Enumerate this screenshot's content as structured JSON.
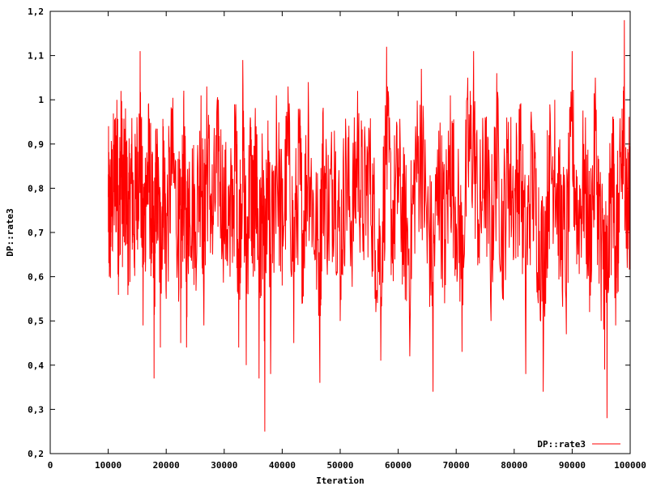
{
  "chart_data": {
    "type": "line",
    "xlabel": "Iteration",
    "ylabel": "DP::rate3",
    "xlim": [
      0,
      100000
    ],
    "ylim": [
      0.2,
      1.2
    ],
    "xticks": [
      0,
      10000,
      20000,
      30000,
      40000,
      50000,
      60000,
      70000,
      80000,
      90000,
      100000
    ],
    "yticks": [
      0.2,
      0.3,
      0.4,
      0.5,
      0.6,
      0.7,
      0.8,
      0.9,
      1.0,
      1.1,
      1.2
    ],
    "xtick_labels": [
      "0",
      "10000",
      "20000",
      "30000",
      "40000",
      "50000",
      "60000",
      "70000",
      "80000",
      "90000",
      "100000"
    ],
    "ytick_labels": [
      "0,2",
      "0,3",
      "0,4",
      "0,5",
      "0,6",
      "0,7",
      "0,8",
      "0,9",
      "1",
      "1,1",
      "1,2"
    ],
    "legend_position": "bottom-right",
    "grid": false,
    "series": [
      {
        "name": "DP::rate3",
        "color": "#ff0000",
        "x_start": 10000,
        "x_end": 100000,
        "sampled_points": [
          [
            10000,
            0.78
          ],
          [
            10200,
            0.6
          ],
          [
            10500,
            0.7
          ],
          [
            11000,
            0.87
          ],
          [
            11500,
            1.0
          ],
          [
            11800,
            0.6
          ],
          [
            12200,
            1.02
          ],
          [
            12600,
            0.72
          ],
          [
            13000,
            0.92
          ],
          [
            13500,
            0.58
          ],
          [
            14000,
            0.9
          ],
          [
            14500,
            0.62
          ],
          [
            15000,
            0.92
          ],
          [
            15500,
            1.11
          ],
          [
            16000,
            0.49
          ],
          [
            16500,
            0.83
          ],
          [
            17000,
            0.95
          ],
          [
            17500,
            0.67
          ],
          [
            17900,
            0.37
          ],
          [
            18300,
            0.9
          ],
          [
            19000,
            0.44
          ],
          [
            19500,
            0.94
          ],
          [
            20000,
            0.55
          ],
          [
            21000,
            0.98
          ],
          [
            22000,
            0.68
          ],
          [
            22500,
            0.45
          ],
          [
            23000,
            1.0
          ],
          [
            23500,
            0.44
          ],
          [
            24000,
            0.86
          ],
          [
            25000,
            0.62
          ],
          [
            26000,
            1.01
          ],
          [
            26500,
            0.49
          ],
          [
            27000,
            1.03
          ],
          [
            28000,
            0.65
          ],
          [
            29000,
            1.0
          ],
          [
            30000,
            0.69
          ],
          [
            31000,
            0.6
          ],
          [
            32000,
            0.99
          ],
          [
            32500,
            0.44
          ],
          [
            33200,
            1.09
          ],
          [
            33800,
            0.4
          ],
          [
            34500,
            0.96
          ],
          [
            35000,
            0.6
          ],
          [
            35500,
            0.94
          ],
          [
            36000,
            0.37
          ],
          [
            36500,
            0.72
          ],
          [
            37000,
            0.25
          ],
          [
            37500,
            0.84
          ],
          [
            38000,
            0.38
          ],
          [
            39000,
            1.01
          ],
          [
            40000,
            0.58
          ],
          [
            41000,
            1.03
          ],
          [
            42000,
            0.45
          ],
          [
            43000,
            0.98
          ],
          [
            43500,
            0.54
          ],
          [
            44500,
            1.04
          ],
          [
            45500,
            0.65
          ],
          [
            46500,
            0.36
          ],
          [
            47000,
            0.97
          ],
          [
            48000,
            0.68
          ],
          [
            49000,
            0.93
          ],
          [
            50000,
            0.5
          ],
          [
            51000,
            0.91
          ],
          [
            52000,
            0.64
          ],
          [
            53000,
            1.02
          ],
          [
            54000,
            0.72
          ],
          [
            55000,
            0.93
          ],
          [
            56000,
            0.55
          ],
          [
            57000,
            0.41
          ],
          [
            58000,
            1.12
          ],
          [
            59000,
            0.63
          ],
          [
            60000,
            0.89
          ],
          [
            61000,
            0.6
          ],
          [
            62000,
            0.42
          ],
          [
            63000,
            0.94
          ],
          [
            64000,
            1.07
          ],
          [
            65000,
            0.63
          ],
          [
            66000,
            0.34
          ],
          [
            67000,
            0.93
          ],
          [
            68000,
            0.54
          ],
          [
            69000,
            1.01
          ],
          [
            70000,
            0.72
          ],
          [
            71000,
            0.43
          ],
          [
            72000,
            1.05
          ],
          [
            73000,
            1.11
          ],
          [
            74000,
            0.63
          ],
          [
            75000,
            0.96
          ],
          [
            76000,
            0.5
          ],
          [
            77000,
            1.06
          ],
          [
            78000,
            0.55
          ],
          [
            79000,
            0.95
          ],
          [
            80000,
            0.75
          ],
          [
            81000,
            0.99
          ],
          [
            82000,
            0.38
          ],
          [
            83000,
            0.94
          ],
          [
            84000,
            0.61
          ],
          [
            85000,
            0.34
          ],
          [
            86000,
            0.92
          ],
          [
            87000,
            1.0
          ],
          [
            88000,
            0.6
          ],
          [
            89000,
            0.47
          ],
          [
            90000,
            1.11
          ],
          [
            91000,
            0.65
          ],
          [
            92000,
            0.9
          ],
          [
            93000,
            0.52
          ],
          [
            94000,
            1.05
          ],
          [
            95000,
            0.5
          ],
          [
            95600,
            0.39
          ],
          [
            96000,
            0.28
          ],
          [
            97000,
            0.96
          ],
          [
            97500,
            0.49
          ],
          [
            98000,
            0.63
          ],
          [
            98600,
            0.98
          ],
          [
            99000,
            1.18
          ],
          [
            99500,
            0.62
          ],
          [
            100000,
            0.9
          ]
        ]
      }
    ]
  }
}
